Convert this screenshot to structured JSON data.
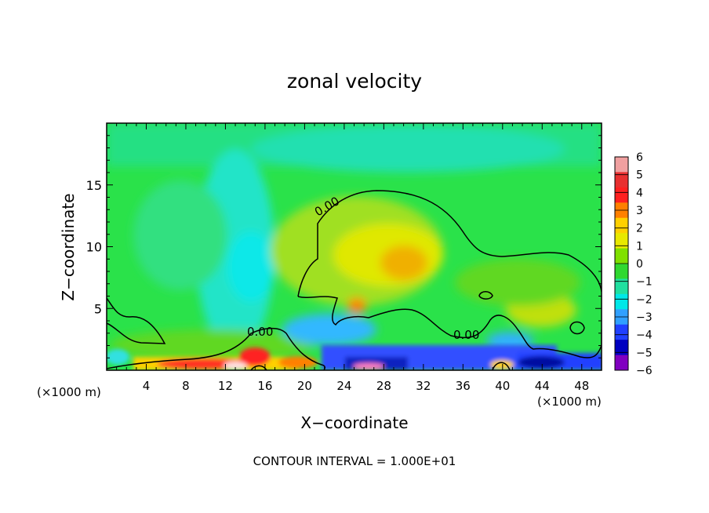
{
  "chart_data": {
    "type": "heatmap",
    "title": "zonal velocity",
    "xlabel": "X−coordinate",
    "ylabel": "Z−coordinate",
    "x_unit_left": "(×1000 m)",
    "x_unit_right": "(×1000 m)",
    "xlim": [
      0,
      50
    ],
    "ylim": [
      0,
      20
    ],
    "x_ticks": [
      4,
      8,
      12,
      16,
      20,
      24,
      28,
      32,
      36,
      40,
      44,
      48
    ],
    "y_ticks": [
      5,
      10,
      15
    ],
    "contour_label": "0.00",
    "footer": "CONTOUR INTERVAL = 1.000E+01",
    "colorbar": {
      "min": -6,
      "max": 6,
      "tick_labels": [
        "6",
        "5",
        "4",
        "3",
        "2",
        "1",
        "0",
        "−1",
        "−2",
        "−3",
        "−4",
        "−5",
        "−6"
      ],
      "colors": [
        "#f0a0a0",
        "#e83030",
        "#ff2020",
        "#ff8000",
        "#ffd000",
        "#e8e800",
        "#80e000",
        "#30d830",
        "#20e0a0",
        "#00e8e8",
        "#30a0ff",
        "#2040ff",
        "#0000c0",
        "#8000c0"
      ]
    },
    "features": [
      {
        "name": "positive-core",
        "x": 30,
        "z": 8.8,
        "value": 3.2
      },
      {
        "name": "positive-upper",
        "x": 28,
        "z": 10,
        "value": 1.8
      },
      {
        "name": "positive-right",
        "x": 43,
        "z": 4.2,
        "value": 1.6
      },
      {
        "name": "positive-small",
        "x": 25,
        "z": 5.2,
        "value": 3.5
      },
      {
        "name": "negative-band",
        "x": 14,
        "z": 9,
        "value": -1.7
      },
      {
        "name": "negative-top",
        "x": 30,
        "z": 19,
        "value": -0.8
      },
      {
        "name": "surface-positive",
        "x": 12,
        "z": 0.3,
        "value": 4.5
      },
      {
        "name": "surface-negative",
        "x": 30,
        "z": 0.8,
        "value": -4.5
      }
    ]
  }
}
